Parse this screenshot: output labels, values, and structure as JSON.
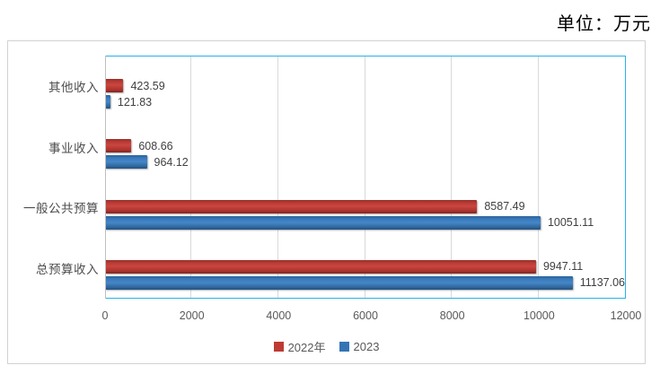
{
  "unit_label": "单位：万元",
  "colors": {
    "plot_border": "#27B2E9",
    "chart_border": "#D2D2D2",
    "gridline": "#D9D9D9",
    "axis_line": "#BFBFBF",
    "category_text": "#4D4D4D",
    "value_text": "#404040",
    "tick_text": "#595959",
    "series_2022": "#BE3B33",
    "series_2023": "#3474B5"
  },
  "chart_data": {
    "type": "bar",
    "orientation": "horizontal",
    "title": "",
    "unit": "万元",
    "category_order": "top-to-bottom",
    "categories": [
      "其他收入",
      "事业收入",
      "一般公共预算",
      "总预算收入"
    ],
    "series": [
      {
        "name": "2022年",
        "color": "#BE3B33",
        "values": [
          423.59,
          608.66,
          8587.49,
          9947.11
        ]
      },
      {
        "name": "2023",
        "color": "#3474B5",
        "values": [
          121.83,
          964.12,
          10051.11,
          11137.06
        ]
      }
    ],
    "data_labels": [
      [
        "423.59",
        "608.66",
        "8587.49",
        "9947.11"
      ],
      [
        "121.83",
        "964.12",
        "10051.11",
        "11137.06"
      ]
    ],
    "xlim": [
      0,
      12000
    ],
    "x_ticks": [
      "0",
      "2000",
      "4000",
      "6000",
      "8000",
      "10000",
      "12000"
    ],
    "grid": true,
    "legend_position": "bottom"
  }
}
